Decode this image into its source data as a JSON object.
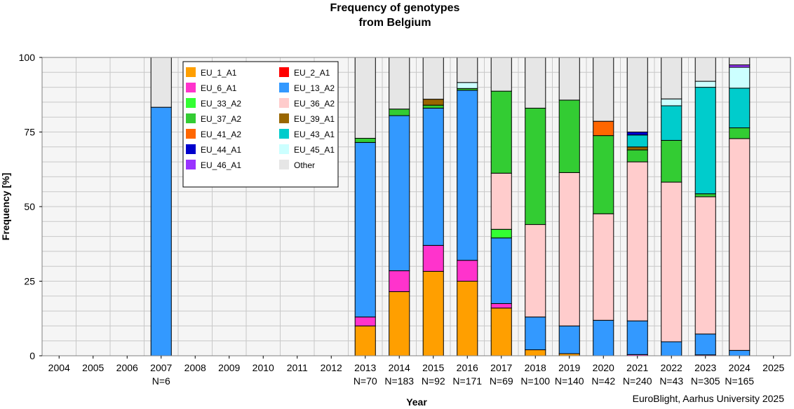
{
  "chart_data": {
    "type": "bar",
    "stacked": true,
    "title": "Frequency of genotypes",
    "subtitle": "from Belgium",
    "xlabel": "Year",
    "ylabel": "Frequency [%]",
    "ylim": [
      0,
      100
    ],
    "yticks": [
      "0",
      "25",
      "50",
      "75",
      "100"
    ],
    "grid": true,
    "legend_position": "top-left",
    "credit": "EuroBlight, Aarhus University 2025",
    "categories": [
      "2004",
      "2005",
      "2006",
      "2007",
      "2008",
      "2009",
      "2010",
      "2011",
      "2012",
      "2013",
      "2014",
      "2015",
      "2016",
      "2017",
      "2018",
      "2019",
      "2020",
      "2021",
      "2022",
      "2023",
      "2024",
      "2025"
    ],
    "n_labels": [
      "",
      "",
      "",
      "N=6",
      "",
      "",
      "",
      "",
      "",
      "N=70",
      "N=183",
      "N=92",
      "N=171",
      "N=69",
      "N=100",
      "N=140",
      "N=42",
      "N=240",
      "N=43",
      "N=305",
      "N=165",
      ""
    ],
    "series": [
      {
        "name": "EU_1_A1",
        "color": "#ff9f00",
        "values": [
          0,
          0,
          0,
          0,
          0,
          0,
          0,
          0,
          0,
          10,
          21.5,
          28.3,
          25,
          16,
          2,
          0.7,
          0,
          0,
          0,
          0,
          0,
          0
        ]
      },
      {
        "name": "EU_2_A1",
        "color": "#ff0000",
        "values": [
          0,
          0,
          0,
          0,
          0,
          0,
          0,
          0,
          0,
          0,
          0,
          0,
          0,
          0,
          0,
          0,
          0,
          0,
          0,
          0,
          0,
          0
        ]
      },
      {
        "name": "EU_6_A1",
        "color": "#ff33cc",
        "values": [
          0,
          0,
          0,
          0,
          0,
          0,
          0,
          0,
          0,
          3,
          7,
          8.7,
          7,
          1.5,
          0,
          0,
          0,
          0.4,
          0,
          0.3,
          0,
          0
        ]
      },
      {
        "name": "EU_13_A2",
        "color": "#3399ff",
        "values": [
          0,
          0,
          0,
          83.3,
          0,
          0,
          0,
          0,
          0,
          58.5,
          52,
          46,
          57,
          22,
          11,
          9.3,
          11.9,
          11.3,
          4.7,
          7,
          1.8,
          0
        ]
      },
      {
        "name": "EU_33_A2",
        "color": "#33ff33",
        "values": [
          0,
          0,
          0,
          0,
          0,
          0,
          0,
          0,
          0,
          0,
          0,
          0,
          0,
          2.9,
          0,
          0,
          0,
          0,
          0,
          0,
          0,
          0
        ]
      },
      {
        "name": "EU_36_A2",
        "color": "#ffcccc",
        "values": [
          0,
          0,
          0,
          0,
          0,
          0,
          0,
          0,
          0,
          0,
          0,
          0,
          0,
          18.8,
          31,
          51.4,
          35.7,
          53.3,
          53.5,
          46,
          71,
          0
        ]
      },
      {
        "name": "EU_37_A2",
        "color": "#33cc33",
        "values": [
          0,
          0,
          0,
          0,
          0,
          0,
          0,
          0,
          0,
          1.4,
          2.2,
          1,
          0.6,
          27.5,
          39,
          24.3,
          26.2,
          4,
          14,
          1,
          3.6,
          0
        ]
      },
      {
        "name": "EU_39_A1",
        "color": "#996600",
        "values": [
          0,
          0,
          0,
          0,
          0,
          0,
          0,
          0,
          0,
          0,
          0,
          2,
          0,
          0,
          0,
          0,
          0,
          1,
          0,
          0,
          0,
          0
        ]
      },
      {
        "name": "EU_41_A2",
        "color": "#ff6600",
        "values": [
          0,
          0,
          0,
          0,
          0,
          0,
          0,
          0,
          0,
          0,
          0,
          0,
          0,
          0,
          0,
          0,
          4.8,
          0,
          0,
          0,
          0,
          0
        ]
      },
      {
        "name": "EU_43_A1",
        "color": "#00cccc",
        "values": [
          0,
          0,
          0,
          0,
          0,
          0,
          0,
          0,
          0,
          0,
          0,
          0,
          0,
          0,
          0,
          0,
          0,
          4,
          11.6,
          35.7,
          13.3,
          0
        ]
      },
      {
        "name": "EU_44_A1",
        "color": "#0000cc",
        "values": [
          0,
          0,
          0,
          0,
          0,
          0,
          0,
          0,
          0,
          0,
          0,
          0,
          0,
          0,
          0,
          0,
          0,
          1,
          0,
          0,
          0,
          0
        ]
      },
      {
        "name": "EU_45_A1",
        "color": "#ccffff",
        "values": [
          0,
          0,
          0,
          0,
          0,
          0,
          0,
          0,
          0,
          0,
          0,
          0,
          2,
          0,
          0,
          0,
          0,
          0,
          2.3,
          2,
          7,
          0
        ]
      },
      {
        "name": "EU_46_A1",
        "color": "#9933ff",
        "values": [
          0,
          0,
          0,
          0,
          0,
          0,
          0,
          0,
          0,
          0,
          0,
          0,
          0,
          0,
          0,
          0,
          0,
          0,
          0,
          0,
          0.8,
          0
        ]
      },
      {
        "name": "Other",
        "color": "#e6e6e6",
        "values": [
          0,
          0,
          0,
          16.7,
          0,
          0,
          0,
          0,
          0,
          27.1,
          17.3,
          14,
          8.4,
          11.3,
          17,
          14.3,
          21.4,
          25,
          13.9,
          8,
          2.5,
          0
        ]
      }
    ]
  }
}
